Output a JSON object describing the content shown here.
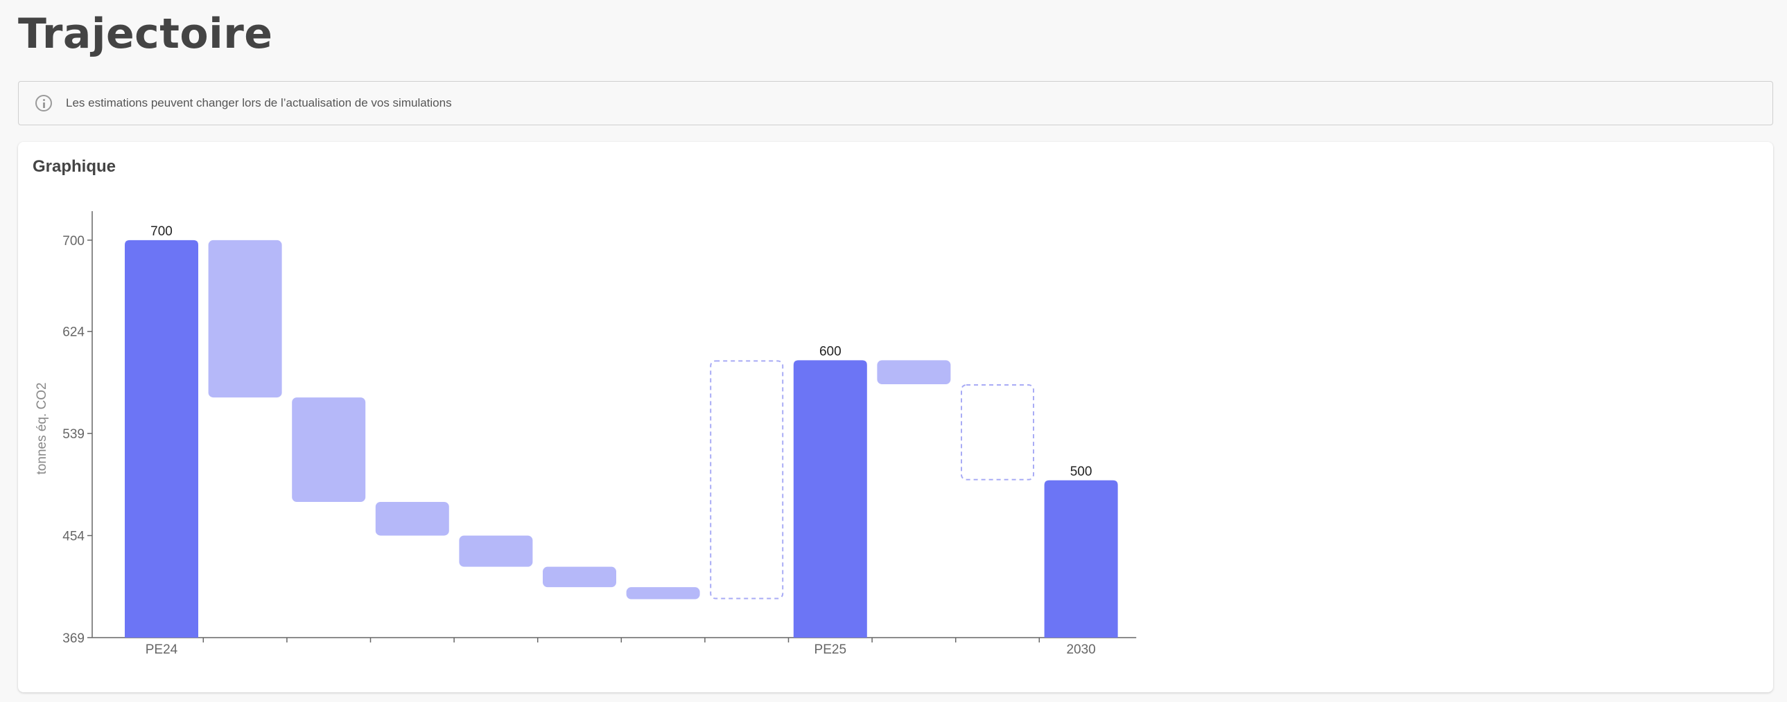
{
  "page": {
    "title": "Trajectoire"
  },
  "info": {
    "text": "Les estimations peuvent changer lors de l’actualisation de vos simulations",
    "icon": "info-icon"
  },
  "card": {
    "title": "Graphique"
  },
  "colors": {
    "total": "#6c75f5",
    "step": "#b5b8f9",
    "dashed": "#a8abf5",
    "axis": "#666666"
  },
  "chart_data": {
    "type": "bar",
    "subtype": "waterfall",
    "ylabel": "tonnes éq. CO2",
    "xlabel": "",
    "ylim": [
      369,
      723
    ],
    "yticks": [
      369,
      454,
      539,
      624,
      700
    ],
    "grid": false,
    "bars": [
      {
        "category": "PE24",
        "kind": "total",
        "start": 369,
        "end": 700,
        "label": "700"
      },
      {
        "category": "",
        "kind": "step",
        "start": 700,
        "end": 569
      },
      {
        "category": "",
        "kind": "step",
        "start": 569,
        "end": 482
      },
      {
        "category": "",
        "kind": "step",
        "start": 482,
        "end": 454
      },
      {
        "category": "",
        "kind": "step",
        "start": 454,
        "end": 428
      },
      {
        "category": "",
        "kind": "step",
        "start": 428,
        "end": 411
      },
      {
        "category": "",
        "kind": "step",
        "start": 411,
        "end": 401
      },
      {
        "category": "",
        "kind": "dashed",
        "start": 401,
        "end": 600
      },
      {
        "category": "PE25",
        "kind": "total",
        "start": 369,
        "end": 600,
        "label": "600"
      },
      {
        "category": "",
        "kind": "step",
        "start": 600,
        "end": 580
      },
      {
        "category": "",
        "kind": "dashed",
        "start": 580,
        "end": 500
      },
      {
        "category": "2030",
        "kind": "total",
        "start": 369,
        "end": 500,
        "label": "500"
      }
    ]
  }
}
